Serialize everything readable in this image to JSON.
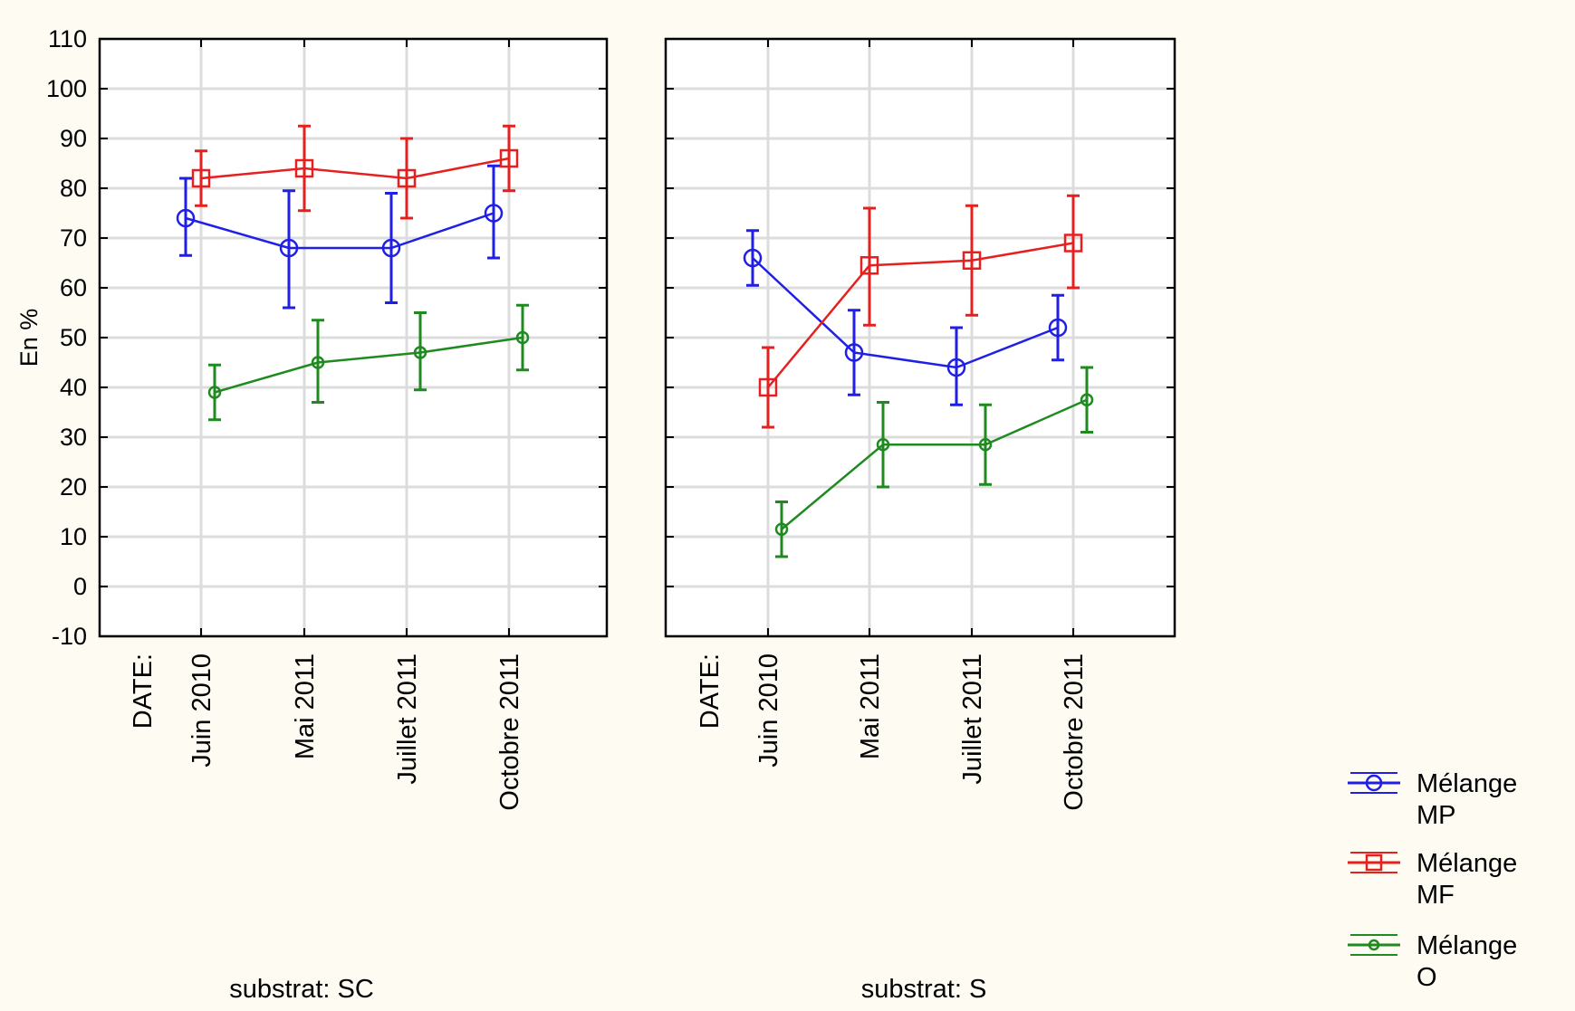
{
  "chart_data": {
    "type": "line",
    "ylabel": "En %",
    "ylim": [
      -10,
      110
    ],
    "yticks": [
      -10,
      0,
      10,
      20,
      30,
      40,
      50,
      60,
      70,
      80,
      90,
      100,
      110
    ],
    "grid": true,
    "category_prefix": "DATE:",
    "categories": [
      "Juin 2010",
      "Mai 2011",
      "Juillet 2011",
      "Octobre 2011"
    ],
    "legend_position": "bottom-right",
    "legend": [
      {
        "label_line1": "Mélange",
        "label_line2": "MP",
        "color": "#1f1fe6",
        "marker": "circle"
      },
      {
        "label_line1": "Mélange",
        "label_line2": "MF",
        "color": "#e61f1f",
        "marker": "square"
      },
      {
        "label_line1": "Mélange",
        "label_line2": "O",
        "color": "#1f8a1f",
        "marker": "diamond"
      }
    ],
    "panels": [
      {
        "label": "substrat: SC",
        "series": [
          {
            "key": "MP",
            "color": "#1f1fe6",
            "marker": "circle",
            "values": [
              74,
              68,
              68,
              75
            ],
            "err_low": [
              66.5,
              56,
              57,
              66
            ],
            "err_high": [
              82,
              79.5,
              79,
              84.5
            ]
          },
          {
            "key": "MF",
            "color": "#e61f1f",
            "marker": "square",
            "values": [
              82,
              84,
              82,
              86
            ],
            "err_low": [
              76.5,
              75.5,
              74,
              79.5
            ],
            "err_high": [
              87.5,
              92.5,
              90,
              92.5
            ]
          },
          {
            "key": "O",
            "color": "#1f8a1f",
            "marker": "diamond",
            "values": [
              39,
              45,
              47,
              50
            ],
            "err_low": [
              33.5,
              37,
              39.5,
              43.5
            ],
            "err_high": [
              44.5,
              53.5,
              55,
              56.5
            ]
          }
        ]
      },
      {
        "label": "substrat: S",
        "series": [
          {
            "key": "MP",
            "color": "#1f1fe6",
            "marker": "circle",
            "values": [
              66,
              47,
              44,
              52
            ],
            "err_low": [
              60.5,
              38.5,
              36.5,
              45.5
            ],
            "err_high": [
              71.5,
              55.5,
              52,
              58.5
            ]
          },
          {
            "key": "MF",
            "color": "#e61f1f",
            "marker": "square",
            "values": [
              40,
              64.5,
              65.5,
              69
            ],
            "err_low": [
              32,
              52.5,
              54.5,
              60
            ],
            "err_high": [
              48,
              76,
              76.5,
              78.5
            ]
          },
          {
            "key": "O",
            "color": "#1f8a1f",
            "marker": "diamond",
            "values": [
              11.5,
              28.5,
              28.5,
              37.5
            ],
            "err_low": [
              6,
              20,
              20.5,
              31
            ],
            "err_high": [
              17,
              37,
              36.5,
              44
            ]
          }
        ]
      }
    ]
  }
}
